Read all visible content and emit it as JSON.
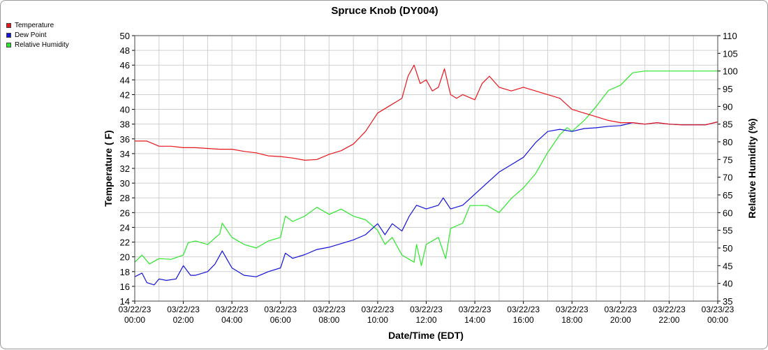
{
  "chart_data": {
    "type": "line",
    "title": "Spruce Knob (DY004)",
    "xlabel": "Date/Time (EDT)",
    "ylabel_left": "Temperature ( F)",
    "ylabel_right": "Relative Humidity (%)",
    "ylim_left": [
      14,
      50
    ],
    "ylim_right": [
      35,
      110
    ],
    "xlim_hours": [
      0,
      24
    ],
    "grid": true,
    "legend_position": "top-left",
    "x_tick_labels": [
      [
        "03/22/23",
        "00:00"
      ],
      [
        "03/22/23",
        "02:00"
      ],
      [
        "03/22/23",
        "04:00"
      ],
      [
        "03/22/23",
        "06:00"
      ],
      [
        "03/22/23",
        "08:00"
      ],
      [
        "03/22/23",
        "10:00"
      ],
      [
        "03/22/23",
        "12:00"
      ],
      [
        "03/22/23",
        "14:00"
      ],
      [
        "03/22/23",
        "16:00"
      ],
      [
        "03/22/23",
        "18:00"
      ],
      [
        "03/22/23",
        "20:00"
      ],
      [
        "03/22/23",
        "22:00"
      ],
      [
        "03/23/23",
        "00:00"
      ]
    ],
    "y_left_ticks": [
      14,
      16,
      18,
      20,
      22,
      24,
      26,
      28,
      30,
      32,
      34,
      36,
      38,
      40,
      42,
      44,
      46,
      48,
      50
    ],
    "y_right_ticks": [
      35,
      40,
      45,
      50,
      55,
      60,
      65,
      70,
      75,
      80,
      85,
      90,
      95,
      100,
      105,
      110
    ],
    "series": [
      {
        "name": "Temperature",
        "color": "#e8161c",
        "axis": "left",
        "points": [
          [
            0,
            35.7
          ],
          [
            0.5,
            35.7
          ],
          [
            1,
            35
          ],
          [
            1.5,
            35
          ],
          [
            2,
            34.8
          ],
          [
            2.5,
            34.8
          ],
          [
            3,
            34.7
          ],
          [
            3.5,
            34.6
          ],
          [
            4,
            34.6
          ],
          [
            4.5,
            34.3
          ],
          [
            5,
            34.1
          ],
          [
            5.5,
            33.7
          ],
          [
            6,
            33.6
          ],
          [
            6.5,
            33.4
          ],
          [
            7,
            33.1
          ],
          [
            7.5,
            33.2
          ],
          [
            8,
            33.9
          ],
          [
            8.5,
            34.4
          ],
          [
            9,
            35.3
          ],
          [
            9.5,
            37
          ],
          [
            10,
            39.5
          ],
          [
            10.5,
            40.5
          ],
          [
            11,
            41.5
          ],
          [
            11.25,
            44.5
          ],
          [
            11.5,
            46
          ],
          [
            11.75,
            43.5
          ],
          [
            12,
            44
          ],
          [
            12.25,
            42.5
          ],
          [
            12.5,
            43
          ],
          [
            12.75,
            45.5
          ],
          [
            13,
            42
          ],
          [
            13.25,
            41.5
          ],
          [
            13.5,
            42
          ],
          [
            14,
            41.3
          ],
          [
            14.3,
            43.5
          ],
          [
            14.6,
            44.5
          ],
          [
            15,
            43
          ],
          [
            15.5,
            42.5
          ],
          [
            16,
            43
          ],
          [
            16.5,
            42.5
          ],
          [
            17,
            42
          ],
          [
            17.5,
            41.5
          ],
          [
            18,
            40
          ],
          [
            18.5,
            39.5
          ],
          [
            19,
            39
          ],
          [
            19.5,
            38.5
          ],
          [
            20,
            38.2
          ],
          [
            20.5,
            38.2
          ],
          [
            21,
            38
          ],
          [
            21.5,
            38.2
          ],
          [
            22,
            38
          ],
          [
            22.5,
            37.9
          ],
          [
            23,
            37.9
          ],
          [
            23.5,
            37.9
          ],
          [
            24,
            38.3
          ]
        ]
      },
      {
        "name": "Dew Point",
        "color": "#1212d8",
        "axis": "left",
        "points": [
          [
            0,
            17.3
          ],
          [
            0.3,
            17.8
          ],
          [
            0.5,
            16.5
          ],
          [
            0.8,
            16.2
          ],
          [
            1,
            17
          ],
          [
            1.3,
            16.8
          ],
          [
            1.7,
            17
          ],
          [
            2,
            18.8
          ],
          [
            2.3,
            17.5
          ],
          [
            2.5,
            17.5
          ],
          [
            3,
            18
          ],
          [
            3.3,
            19
          ],
          [
            3.6,
            20.8
          ],
          [
            4,
            18.5
          ],
          [
            4.5,
            17.5
          ],
          [
            5,
            17.3
          ],
          [
            5.5,
            18
          ],
          [
            6,
            18.5
          ],
          [
            6.2,
            20.5
          ],
          [
            6.5,
            19.8
          ],
          [
            7,
            20.3
          ],
          [
            7.5,
            21
          ],
          [
            8,
            21.3
          ],
          [
            8.5,
            21.8
          ],
          [
            9,
            22.3
          ],
          [
            9.5,
            23
          ],
          [
            10,
            24.5
          ],
          [
            10.3,
            23
          ],
          [
            10.6,
            24.5
          ],
          [
            11,
            23.5
          ],
          [
            11.3,
            25.5
          ],
          [
            11.6,
            27
          ],
          [
            12,
            26.5
          ],
          [
            12.5,
            27
          ],
          [
            12.7,
            28
          ],
          [
            13,
            26.5
          ],
          [
            13.5,
            27
          ],
          [
            14,
            28.5
          ],
          [
            14.5,
            30
          ],
          [
            15,
            31.5
          ],
          [
            15.5,
            32.5
          ],
          [
            16,
            33.5
          ],
          [
            16.5,
            35.5
          ],
          [
            17,
            37
          ],
          [
            17.5,
            37.3
          ],
          [
            18,
            37
          ],
          [
            18.5,
            37.4
          ],
          [
            19,
            37.5
          ],
          [
            19.5,
            37.7
          ],
          [
            20,
            37.8
          ],
          [
            20.5,
            38.2
          ],
          [
            21,
            38
          ],
          [
            21.5,
            38.2
          ],
          [
            22,
            38
          ],
          [
            22.5,
            37.9
          ],
          [
            23,
            37.9
          ],
          [
            23.5,
            37.9
          ],
          [
            24,
            38.3
          ]
        ]
      },
      {
        "name": "Relative Humidity",
        "color": "#2ae82a",
        "axis": "right",
        "points": [
          [
            0,
            46
          ],
          [
            0.3,
            48
          ],
          [
            0.6,
            45.5
          ],
          [
            1,
            47
          ],
          [
            1.5,
            46.8
          ],
          [
            2,
            48
          ],
          [
            2.2,
            51.5
          ],
          [
            2.5,
            52
          ],
          [
            3,
            51
          ],
          [
            3.5,
            54
          ],
          [
            3.6,
            57
          ],
          [
            4,
            53
          ],
          [
            4.5,
            51
          ],
          [
            5,
            50
          ],
          [
            5.5,
            52
          ],
          [
            6,
            53
          ],
          [
            6.2,
            59
          ],
          [
            6.5,
            57.5
          ],
          [
            7,
            59
          ],
          [
            7.5,
            61.5
          ],
          [
            8,
            59.5
          ],
          [
            8.5,
            61
          ],
          [
            9,
            59
          ],
          [
            9.5,
            58
          ],
          [
            10,
            55
          ],
          [
            10.3,
            51
          ],
          [
            10.6,
            53
          ],
          [
            11,
            48
          ],
          [
            11.5,
            46
          ],
          [
            11.6,
            51
          ],
          [
            11.8,
            45
          ],
          [
            12,
            51
          ],
          [
            12.5,
            53
          ],
          [
            12.8,
            47
          ],
          [
            13,
            55.5
          ],
          [
            13.5,
            57
          ],
          [
            13.8,
            62
          ],
          [
            14,
            62
          ],
          [
            14.5,
            62
          ],
          [
            15,
            60
          ],
          [
            15.5,
            64
          ],
          [
            16,
            67
          ],
          [
            16.5,
            71
          ],
          [
            17,
            77
          ],
          [
            17.5,
            82
          ],
          [
            17.8,
            84
          ],
          [
            18,
            83
          ],
          [
            18.5,
            86
          ],
          [
            19,
            90
          ],
          [
            19.5,
            94.5
          ],
          [
            20,
            96
          ],
          [
            20.5,
            99.5
          ],
          [
            21,
            100
          ],
          [
            22,
            100
          ],
          [
            23,
            100
          ],
          [
            24,
            100
          ]
        ]
      }
    ]
  }
}
